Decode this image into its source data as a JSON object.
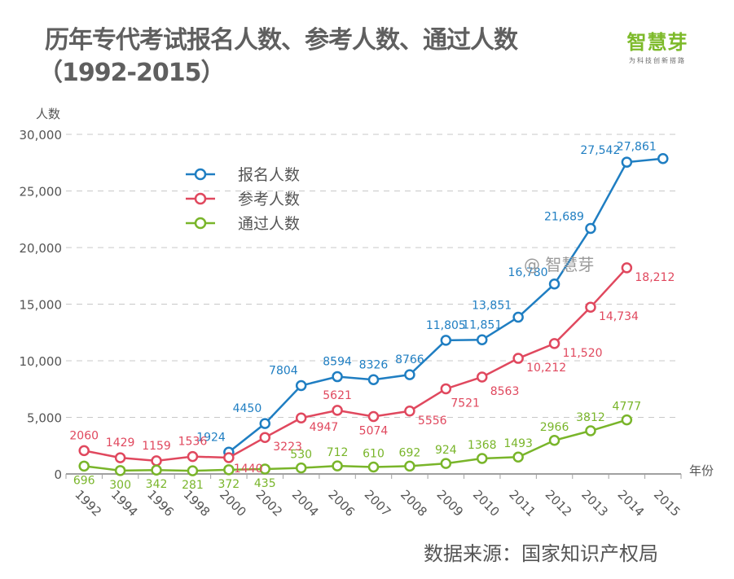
{
  "title": {
    "line1": "历年专代考试报名人数、参考人数、通过人数",
    "line2": "（1992-2015）"
  },
  "logo": {
    "name": "智慧芽",
    "tagline": "为科技创新搭路"
  },
  "watermark": "@ 智慧芽",
  "source": "数据来源：国家知识产权局",
  "colors": {
    "registered": "#1f7ec2",
    "attended": "#e0485e",
    "passed": "#79b52a",
    "grid": "#c8c8c8",
    "axis": "#a0a0a0"
  },
  "chart_data": {
    "type": "line",
    "title": "历年专代考试报名人数、参考人数、通过人数（1992-2015）",
    "xlabel": "年份",
    "ylabel": "人数",
    "ylim": [
      0,
      30000
    ],
    "yticks": [
      0,
      5000,
      10000,
      15000,
      20000,
      25000,
      30000
    ],
    "ytick_labels": [
      "0",
      "5,000",
      "10,000",
      "15,000",
      "20,000",
      "25,000",
      "30,000"
    ],
    "grid": true,
    "legend_position": "top-left",
    "categories": [
      "1992",
      "1994",
      "1996",
      "1998",
      "2000",
      "2002",
      "2004",
      "2006",
      "2007",
      "2008",
      "2009",
      "2010",
      "2011",
      "2012",
      "2013",
      "2014",
      "2015"
    ],
    "series": [
      {
        "name": "报名人数",
        "key": "registered",
        "values": [
          null,
          null,
          null,
          null,
          1924,
          4450,
          7804,
          8594,
          8326,
          8766,
          11805,
          11851,
          13851,
          16780,
          21689,
          27542,
          27861
        ],
        "labels": [
          "",
          "",
          "",
          "",
          "1924",
          "4450",
          "7804",
          "8594",
          "8326",
          "8766",
          "11,805",
          "11,851",
          "13,851",
          "16,780",
          "21,689",
          "27,542",
          "27,861"
        ]
      },
      {
        "name": "参考人数",
        "key": "attended",
        "values": [
          2060,
          1429,
          1159,
          1536,
          1440,
          3223,
          4947,
          5621,
          5074,
          5556,
          7521,
          8563,
          10212,
          11520,
          14734,
          18212,
          null
        ],
        "labels": [
          "2060",
          "1429",
          "1159",
          "1536",
          "1440",
          "3223",
          "4947",
          "5621",
          "5074",
          "5556",
          "7521",
          "8563",
          "10,212",
          "11,520",
          "14,734",
          "18,212",
          ""
        ]
      },
      {
        "name": "通过人数",
        "key": "passed",
        "values": [
          696,
          300,
          342,
          281,
          372,
          435,
          530,
          712,
          610,
          692,
          924,
          1368,
          1493,
          2966,
          3812,
          4777,
          null
        ],
        "labels": [
          "696",
          "300",
          "342",
          "281",
          "372",
          "435",
          "530",
          "712",
          "610",
          "692",
          "924",
          "1368",
          "1493",
          "2966",
          "3812",
          "4777",
          ""
        ]
      }
    ]
  }
}
